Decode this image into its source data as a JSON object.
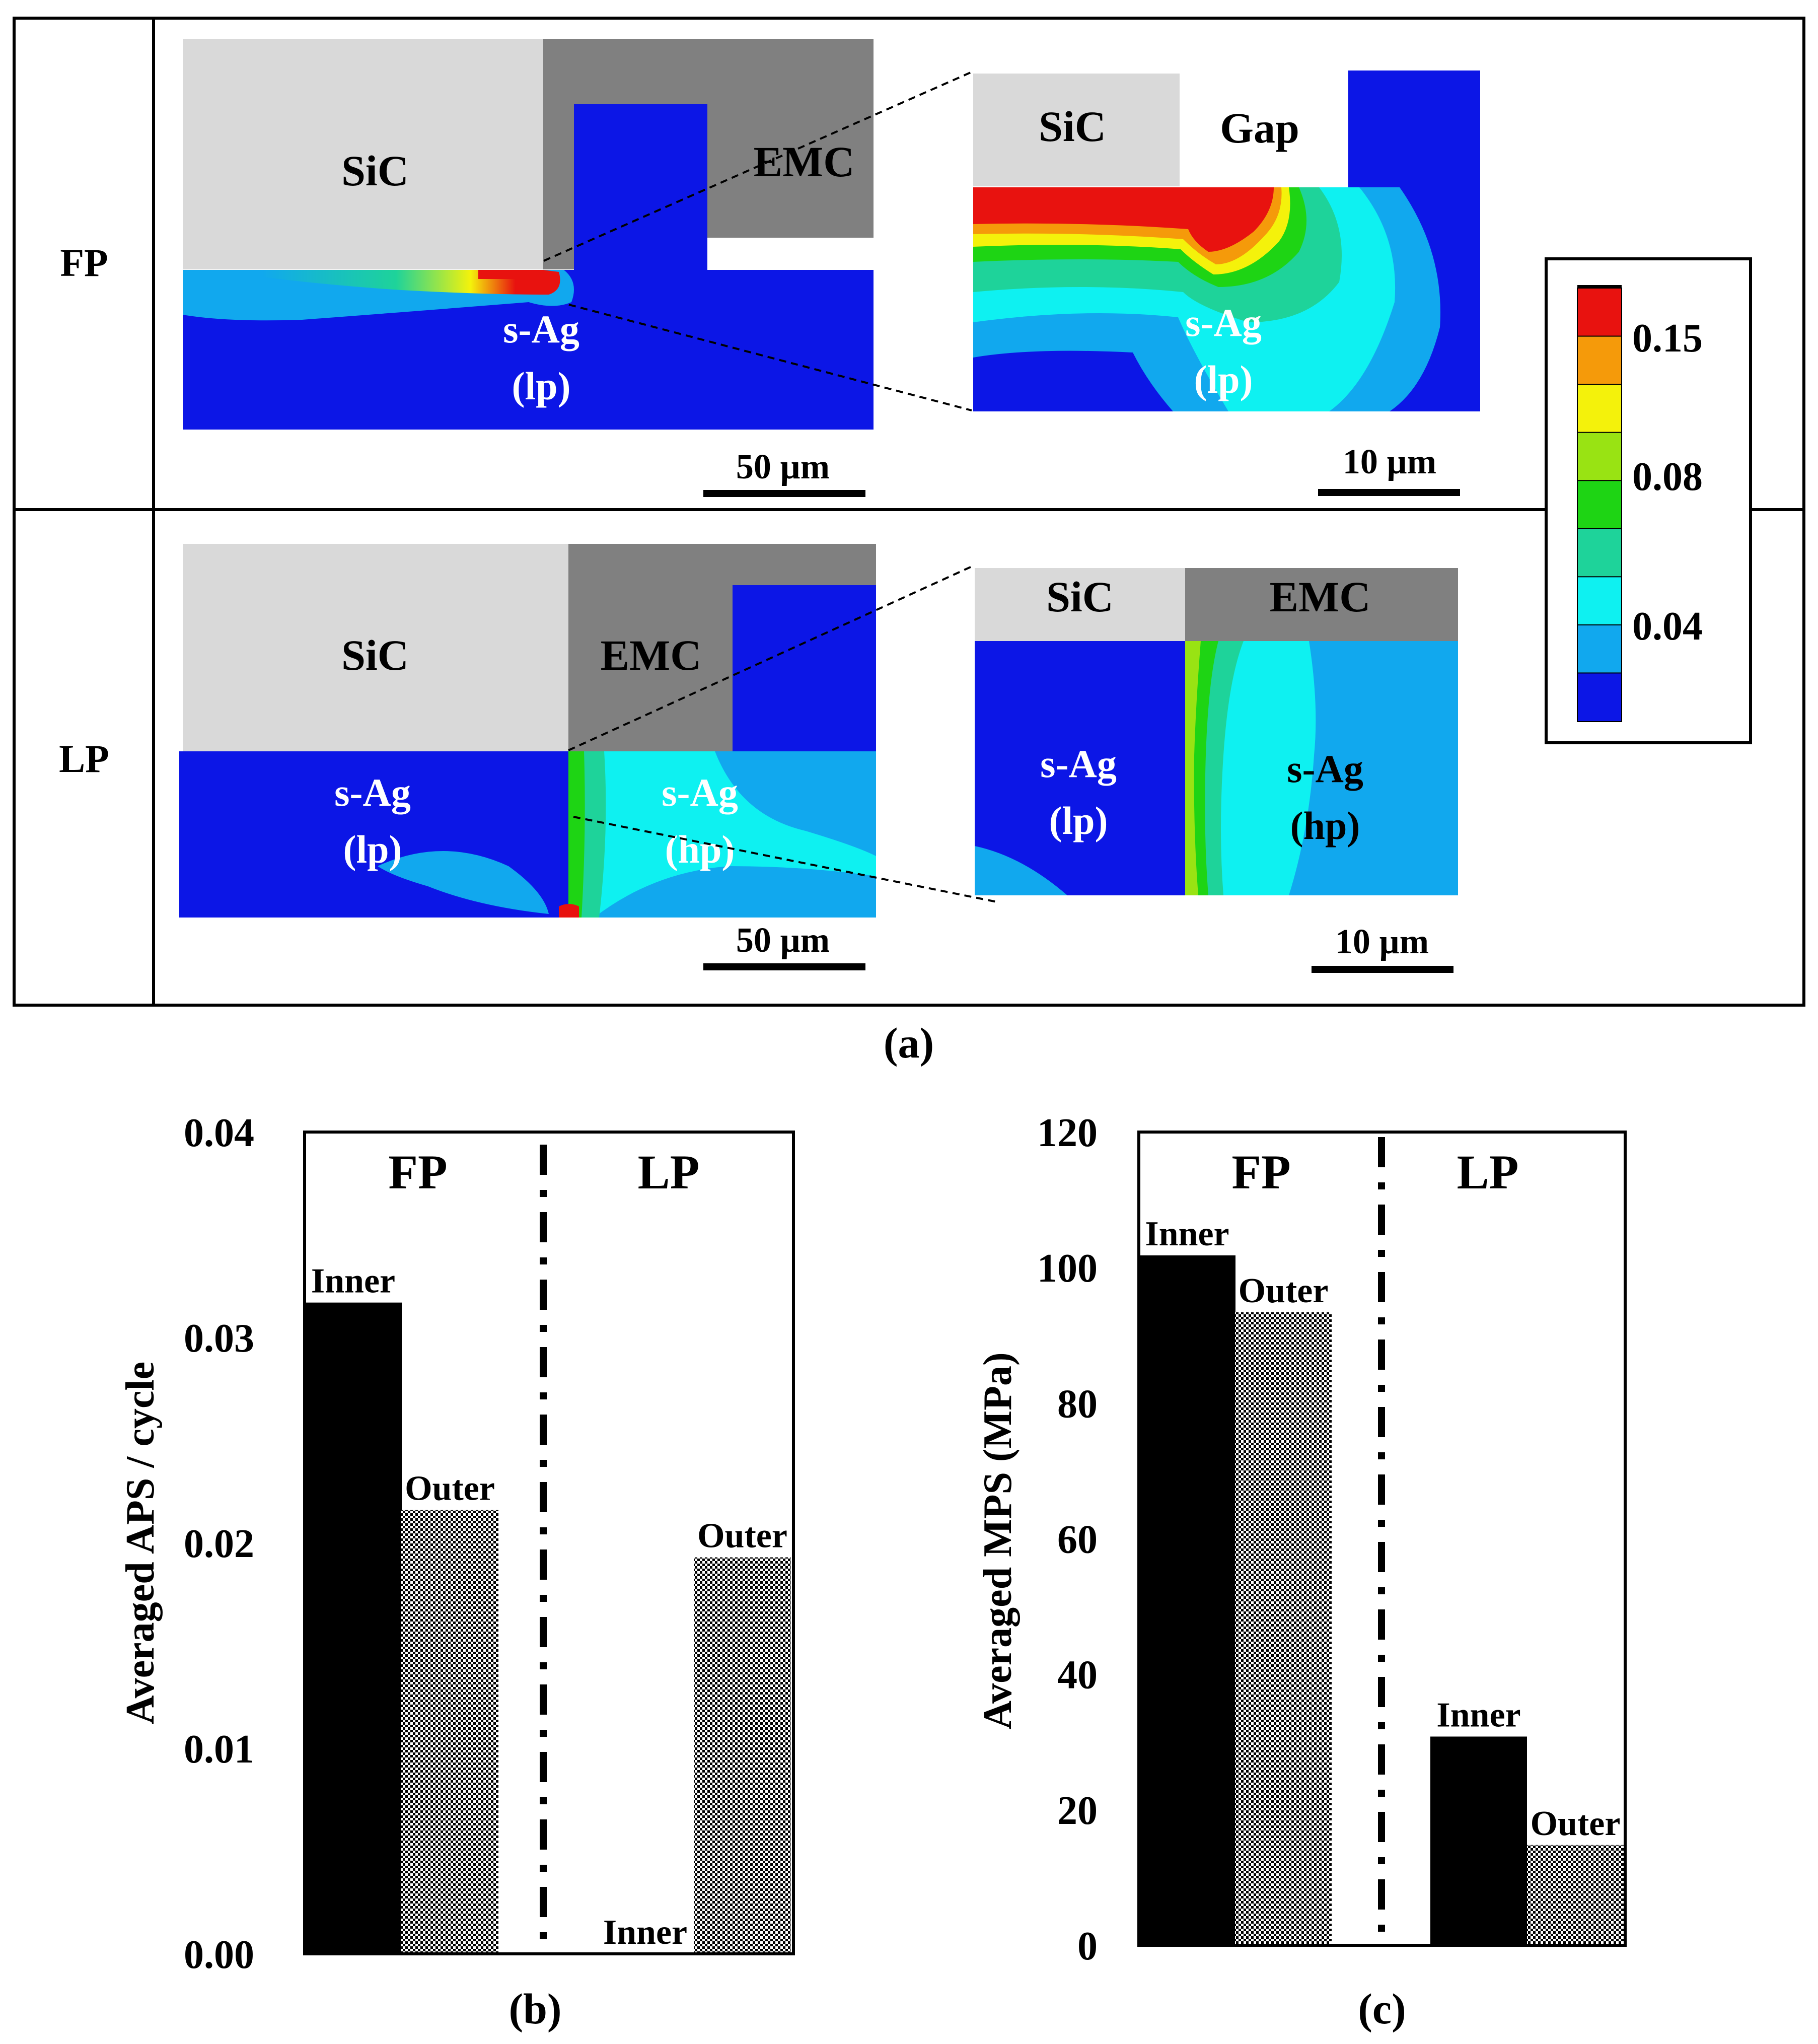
{
  "panel_a": {
    "caption": "(a)",
    "rows": [
      {
        "label": "FP"
      },
      {
        "label": "LP"
      }
    ],
    "fp_overview": {
      "sic": "SiC",
      "emc": "EMC",
      "sag": "s-Ag",
      "sag_sub": "(lp)",
      "scale": "50 µm"
    },
    "fp_zoom": {
      "sic": "SiC",
      "gap": "Gap",
      "sag": "s-Ag",
      "sag_sub": "(lp)",
      "scale": "10 µm"
    },
    "lp_overview": {
      "sic": "SiC",
      "emc": "EMC",
      "sag_lp": "s-Ag",
      "sag_lp_sub": "(lp)",
      "sag_hp": "s-Ag",
      "sag_hp_sub": "(hp)",
      "scale": "50 µm"
    },
    "lp_zoom": {
      "sic": "SiC",
      "emc": "EMC",
      "sag_lp": "s-Ag",
      "sag_lp_sub": "(lp)",
      "sag_hp": "s-Ag",
      "sag_hp_sub": "(hp)",
      "scale": "10 µm"
    },
    "legend": {
      "tick_labels": [
        "0.15",
        "0.08",
        "0.04"
      ],
      "colors": [
        "#e8120f",
        "#f59a0a",
        "#f4f20b",
        "#99e313",
        "#1ed414",
        "#1ed39a",
        "#0ef1f1",
        "#11a8ee",
        "#0c16e6"
      ]
    },
    "colors": {
      "sic": "#d9d9d9",
      "emc": "#808080",
      "blue": "#0c16e6"
    }
  },
  "chart_data": [
    {
      "type": "bar",
      "id": "b",
      "caption": "(b)",
      "ylabel": "Averaged APS / cycle",
      "ylim": [
        0,
        0.04
      ],
      "yticks": [
        "0.00",
        "0.01",
        "0.02",
        "0.03",
        "0.04"
      ],
      "groups": [
        "FP",
        "LP"
      ],
      "bars": [
        {
          "group": "FP",
          "name": "Inner",
          "value": 0.0317
        },
        {
          "group": "FP",
          "name": "Outer",
          "value": 0.0216
        },
        {
          "group": "LP",
          "name": "Inner",
          "value": 0.0
        },
        {
          "group": "LP",
          "name": "Outer",
          "value": 0.0193
        }
      ]
    },
    {
      "type": "bar",
      "id": "c",
      "caption": "(c)",
      "ylabel": "Averaged MPS (MPa)",
      "ylim": [
        0,
        120
      ],
      "yticks": [
        "0",
        "20",
        "40",
        "60",
        "80",
        "100",
        "120"
      ],
      "groups": [
        "FP",
        "LP"
      ],
      "bars": [
        {
          "group": "FP",
          "name": "Inner",
          "value": 101.8
        },
        {
          "group": "FP",
          "name": "Outer",
          "value": 93.4
        },
        {
          "group": "LP",
          "name": "Inner",
          "value": 30.8
        },
        {
          "group": "LP",
          "name": "Outer",
          "value": 14.8
        }
      ]
    }
  ]
}
